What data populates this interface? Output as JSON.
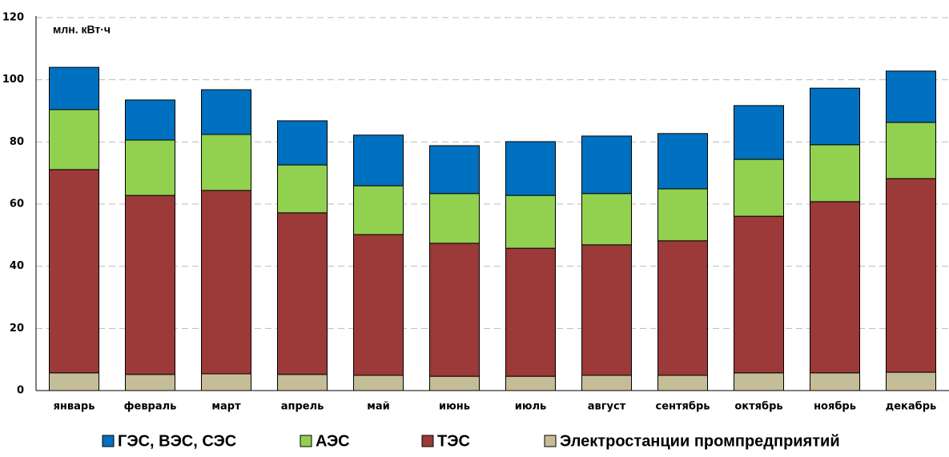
{
  "chart_data": {
    "type": "stacked_bar",
    "unit_label": "млн. кВт·ч",
    "categories": [
      "январь",
      "февраль",
      "март",
      "апрель",
      "май",
      "июнь",
      "июль",
      "август",
      "сентябрь",
      "октябрь",
      "ноябрь",
      "декабрь"
    ],
    "series": [
      {
        "name": "ГЭС, ВЭС, СЭС",
        "color": "#0070c0",
        "values": [
          13.6,
          12.9,
          14.4,
          14.2,
          16.3,
          15.4,
          17.3,
          18.5,
          17.8,
          17.3,
          18.2,
          16.5
        ]
      },
      {
        "name": "АЭС",
        "color": "#92d050",
        "values": [
          19.3,
          17.8,
          18.0,
          15.4,
          15.7,
          16.0,
          17.0,
          16.5,
          16.7,
          18.3,
          18.3,
          18.1
        ]
      },
      {
        "name": "ТЭС",
        "color": "#9b3a38",
        "values": [
          65.4,
          57.6,
          59.0,
          52.0,
          45.3,
          42.8,
          41.2,
          42.0,
          43.3,
          50.4,
          55.1,
          62.3
        ]
      },
      {
        "name": "Электростанции промпредприятий",
        "color": "#c4bd97",
        "values": [
          5.7,
          5.2,
          5.4,
          5.2,
          4.9,
          4.6,
          4.6,
          4.9,
          4.9,
          5.7,
          5.7,
          5.9
        ]
      }
    ],
    "ylim": [
      0,
      120
    ],
    "yticks": [
      0,
      20,
      40,
      60,
      80,
      100,
      120
    ],
    "grid": true,
    "legend": "bottom"
  }
}
